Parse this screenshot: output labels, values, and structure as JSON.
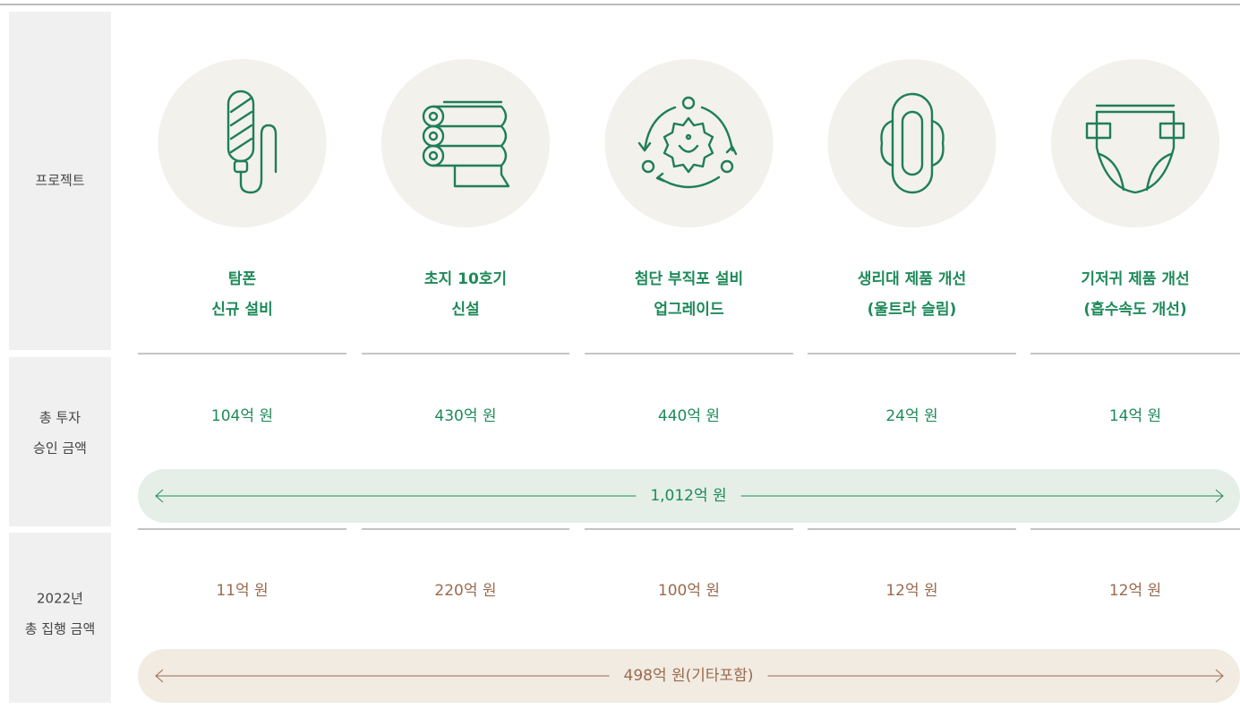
{
  "rows": {
    "project_label": [
      "프로젝트"
    ],
    "approved_label": [
      "총 투자",
      "승인 금액"
    ],
    "spent_label": [
      "2022년",
      "총 집행 금액"
    ]
  },
  "projects": [
    {
      "name": [
        "탐폰",
        "신규 설비"
      ],
      "approved": "104억 원",
      "spent": "11억 원"
    },
    {
      "name": [
        "초지 10호기",
        "신설"
      ],
      "approved": "430억 원",
      "spent": "220억 원"
    },
    {
      "name": [
        "첨단 부직포 설비",
        "업그레이드"
      ],
      "approved": "440억 원",
      "spent": "100억 원"
    },
    {
      "name": [
        "생리대 제품 개선",
        "(울트라 슬림)"
      ],
      "approved": "24억 원",
      "spent": "12억 원"
    },
    {
      "name": [
        "기저귀 제품 개선",
        "(흡수속도 개선)"
      ],
      "approved": "14억 원",
      "spent": "12억 원"
    }
  ],
  "approved_total": "1,012억 원",
  "spent_total": "498억 원(기타포함)"
}
